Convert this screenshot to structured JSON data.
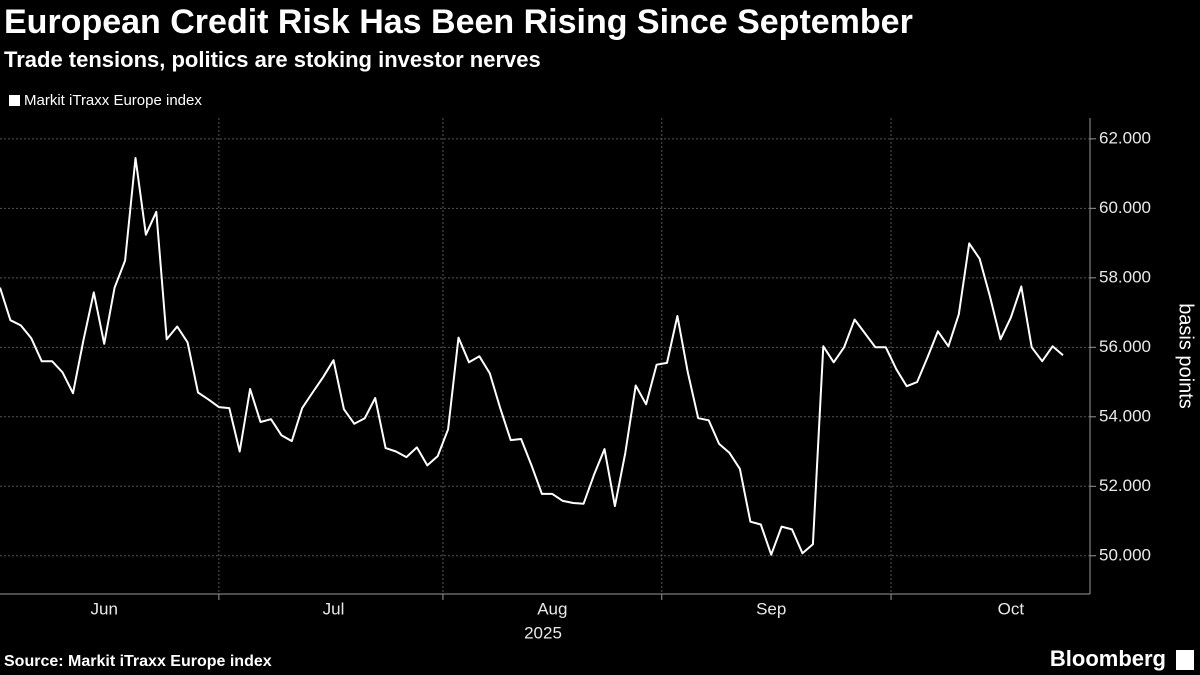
{
  "chart_data": {
    "type": "line",
    "title": "European Credit Risk Has Been Rising Since September",
    "subtitle": "Trade tensions, politics are stoking investor nerves",
    "source": "Source: Markit iTraxx Europe index",
    "brand": "Bloomberg",
    "ylabel": "basis points",
    "year_label": "2025",
    "categories": [
      null,
      null,
      null,
      null,
      null,
      null,
      null,
      null,
      null,
      null,
      "Jun",
      null,
      null,
      null,
      null,
      null,
      null,
      null,
      null,
      null,
      null,
      null,
      null,
      null,
      null,
      null,
      null,
      null,
      null,
      null,
      null,
      null,
      "Jul",
      null,
      null,
      null,
      null,
      null,
      null,
      null,
      null,
      null,
      null,
      null,
      null,
      null,
      null,
      null,
      null,
      null,
      null,
      null,
      null,
      "Aug",
      null,
      null,
      null,
      null,
      null,
      null,
      null,
      null,
      null,
      null,
      null,
      null,
      null,
      null,
      null,
      null,
      null,
      null,
      null,
      null,
      "Sep",
      null,
      null,
      null,
      null,
      null,
      null,
      null,
      null,
      null,
      null,
      null,
      null,
      null,
      null,
      null,
      null,
      null,
      null,
      null,
      null,
      null,
      null,
      "Oct",
      null,
      null,
      null,
      null,
      null
    ],
    "series": [
      {
        "name": "Markit iTraxx Europe index",
        "color": "#ffffff",
        "values": [
          57.72,
          56.78,
          56.63,
          56.26,
          55.6,
          55.6,
          55.28,
          54.68,
          56.2,
          57.58,
          56.1,
          57.72,
          58.5,
          61.45,
          59.24,
          59.9,
          56.23,
          56.6,
          56.14,
          54.7,
          54.5,
          54.28,
          54.25,
          53.0,
          54.8,
          53.85,
          53.93,
          53.47,
          53.3,
          54.25,
          54.7,
          55.14,
          55.63,
          54.22,
          53.8,
          53.96,
          54.54,
          53.1,
          53.0,
          52.84,
          53.12,
          52.6,
          52.87,
          53.64,
          56.28,
          55.57,
          55.74,
          55.25,
          54.25,
          53.33,
          53.36,
          52.6,
          51.78,
          51.78,
          51.58,
          51.52,
          51.5,
          52.33,
          53.07,
          51.43,
          52.96,
          54.9,
          54.36,
          55.5,
          55.55,
          56.9,
          55.28,
          53.96,
          53.9,
          53.22,
          52.96,
          52.5,
          50.98,
          50.9,
          50.03,
          50.84,
          50.76,
          50.07,
          50.33,
          56.03,
          55.57,
          56.0,
          56.8,
          56.4,
          56.0,
          56.0,
          55.37,
          54.88,
          55.0,
          55.71,
          56.46,
          56.03,
          56.95,
          58.99,
          58.55,
          57.46,
          56.23,
          56.86,
          57.75,
          56.0,
          55.6,
          56.03,
          55.77
        ]
      }
    ],
    "ylim": [
      48.9,
      62.6
    ],
    "yticks": [
      {
        "value": 50,
        "label": "50.000"
      },
      {
        "value": 52,
        "label": "52.000"
      },
      {
        "value": 54,
        "label": "54.000"
      },
      {
        "value": 56,
        "label": "56.000"
      },
      {
        "value": 58,
        "label": "58.000"
      },
      {
        "value": 60,
        "label": "60.000"
      },
      {
        "value": 62,
        "label": "62.000"
      }
    ],
    "grid": true
  }
}
